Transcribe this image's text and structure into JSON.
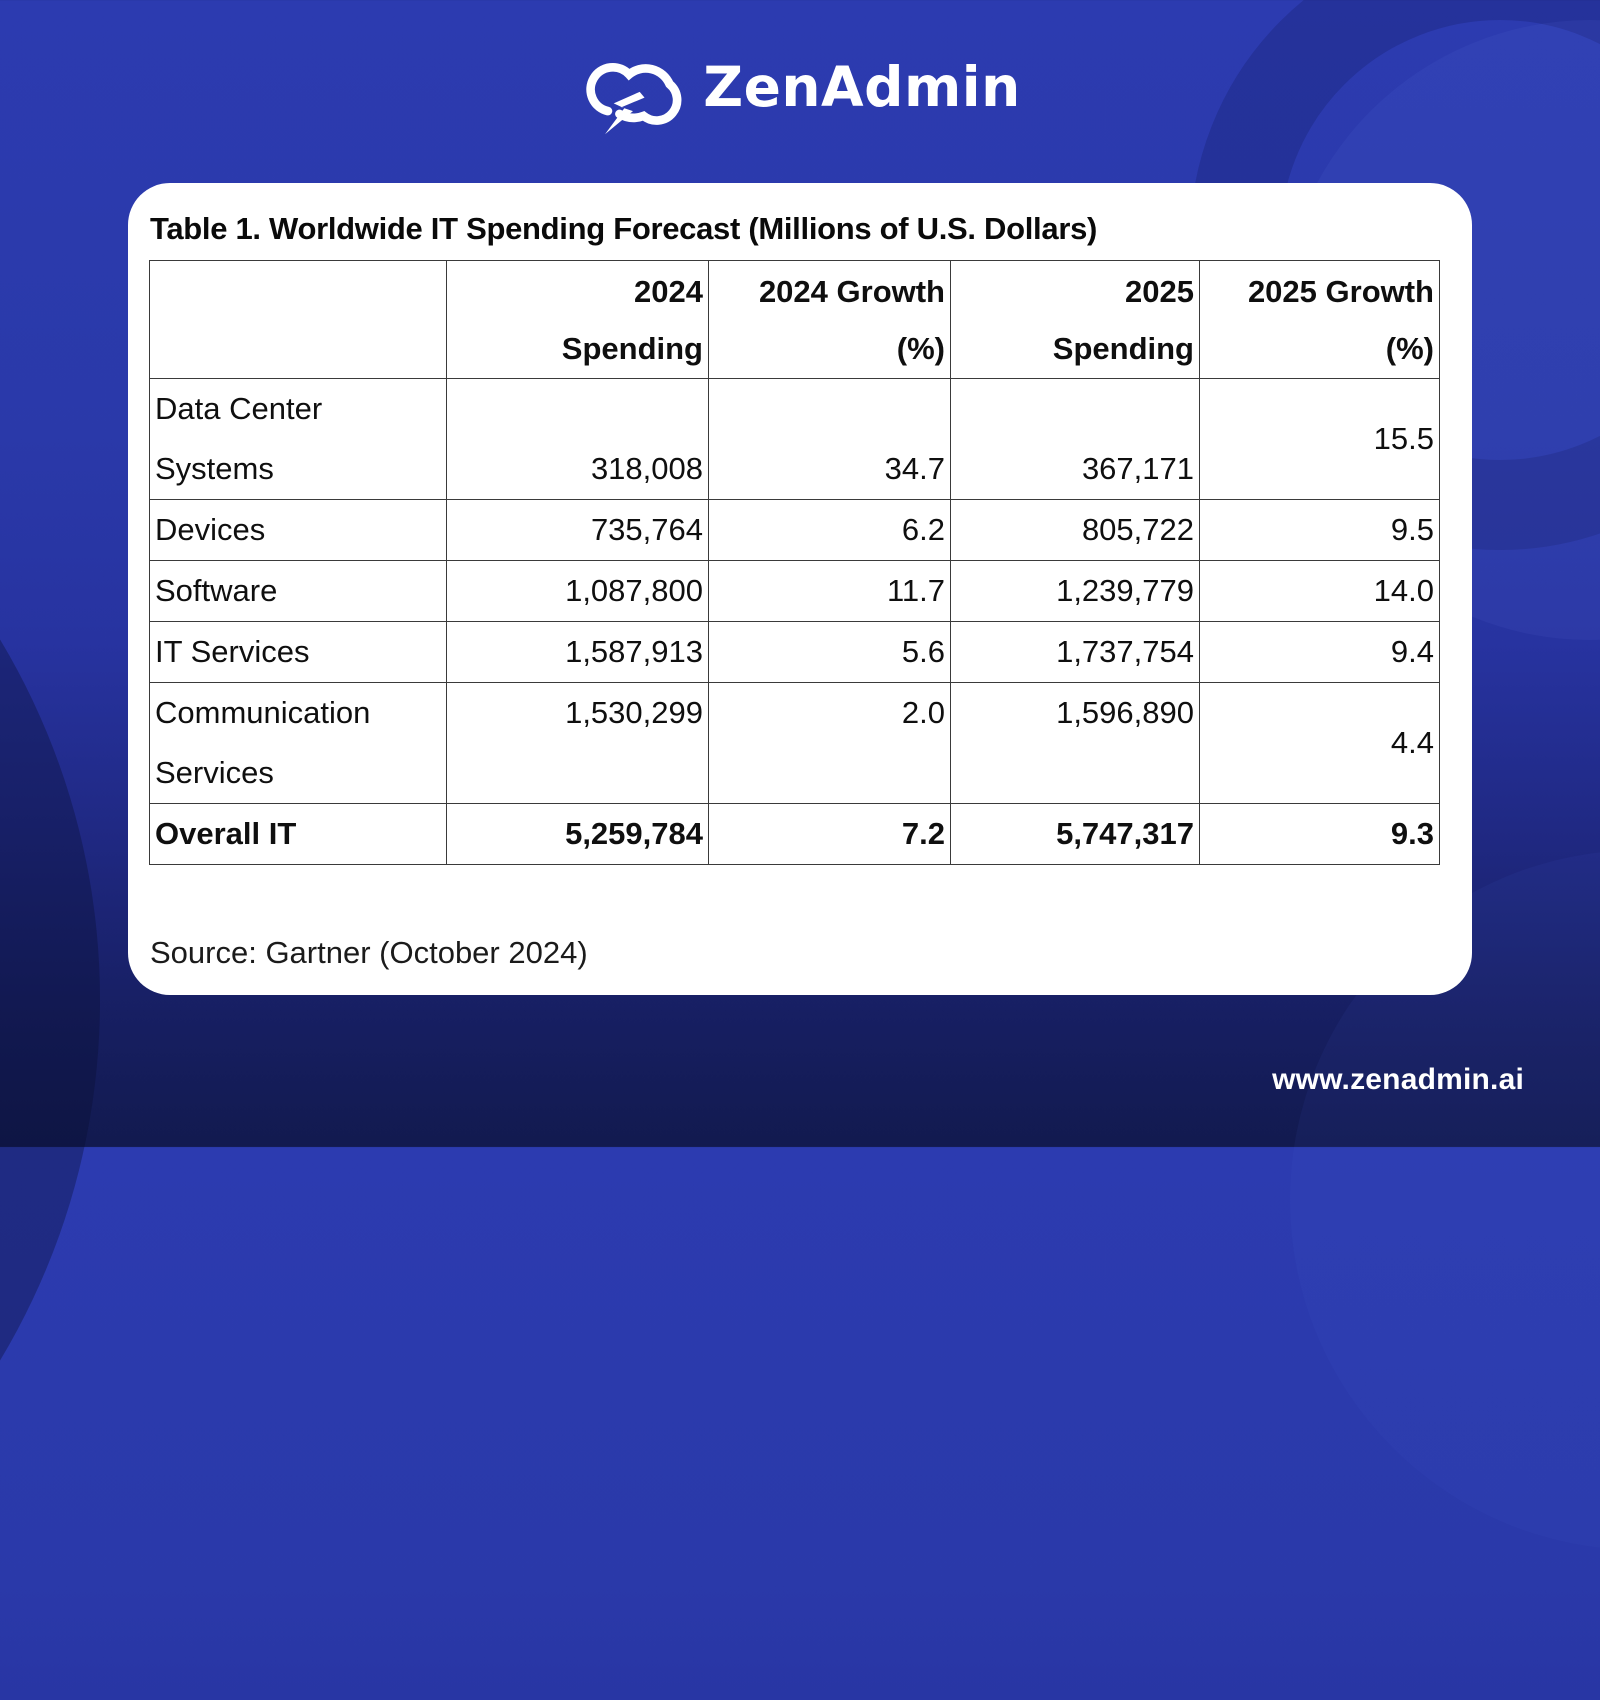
{
  "header": {
    "brand": "ZenAdmin"
  },
  "card": {
    "title": "Table 1. Worldwide IT Spending Forecast (Millions of U.S. Dollars)",
    "source": "Source: Gartner (October 2024)"
  },
  "table": {
    "headers": [
      {
        "line1": "",
        "line2": ""
      },
      {
        "line1": "2024",
        "line2": "Spending"
      },
      {
        "line1": "2024 Growth",
        "line2": "(%)"
      },
      {
        "line1": "2025",
        "line2": "Spending"
      },
      {
        "line1": "2025 Growth",
        "line2": "(%)"
      }
    ],
    "rows": [
      {
        "label": "Data Center Systems",
        "values": [
          "318,008",
          "34.7",
          "367,171",
          "15.5"
        ],
        "valign": "bottom",
        "bold": false,
        "tall": true
      },
      {
        "label": "Devices",
        "values": [
          "735,764",
          "6.2",
          "805,722",
          "9.5"
        ],
        "valign": "middle",
        "bold": false,
        "tall": false
      },
      {
        "label": "Software",
        "values": [
          "1,087,800",
          "11.7",
          "1,239,779",
          "14.0"
        ],
        "valign": "middle",
        "bold": false,
        "tall": false
      },
      {
        "label": "IT Services",
        "values": [
          "1,587,913",
          "5.6",
          "1,737,754",
          "9.4"
        ],
        "valign": "middle",
        "bold": false,
        "tall": false
      },
      {
        "label": "Communication Services",
        "values": [
          "1,530,299",
          "2.0",
          "1,596,890",
          "4.4"
        ],
        "valign": "top",
        "bold": false,
        "tall": true
      },
      {
        "label": "Overall IT",
        "values": [
          "5,259,784",
          "7.2",
          "5,747,317",
          "9.3"
        ],
        "valign": "middle",
        "bold": true,
        "tall": false
      }
    ]
  },
  "footer": {
    "url": "www.zenadmin.ai"
  },
  "colors": {
    "background_top": "#2b3aad",
    "background_bottom": "#121a4f",
    "card": "#ffffff",
    "table_border": "#3a3a3a",
    "text": "#0f0f0f",
    "brand_text": "#ffffff"
  },
  "chart_data": {
    "type": "table",
    "title": "Table 1. Worldwide IT Spending Forecast (Millions of U.S. Dollars)",
    "columns": [
      "",
      "2024 Spending",
      "2024 Growth (%)",
      "2025 Spending",
      "2025 Growth (%)"
    ],
    "rows": [
      [
        "Data Center Systems",
        318008,
        34.7,
        367171,
        15.5
      ],
      [
        "Devices",
        735764,
        6.2,
        805722,
        9.5
      ],
      [
        "Software",
        1087800,
        11.7,
        1239779,
        14.0
      ],
      [
        "IT Services",
        1587913,
        5.6,
        1737754,
        9.4
      ],
      [
        "Communication Services",
        1530299,
        2.0,
        1596890,
        4.4
      ],
      [
        "Overall IT",
        5259784,
        7.2,
        5747317,
        9.3
      ]
    ],
    "source": "Source: Gartner (October 2024)"
  }
}
